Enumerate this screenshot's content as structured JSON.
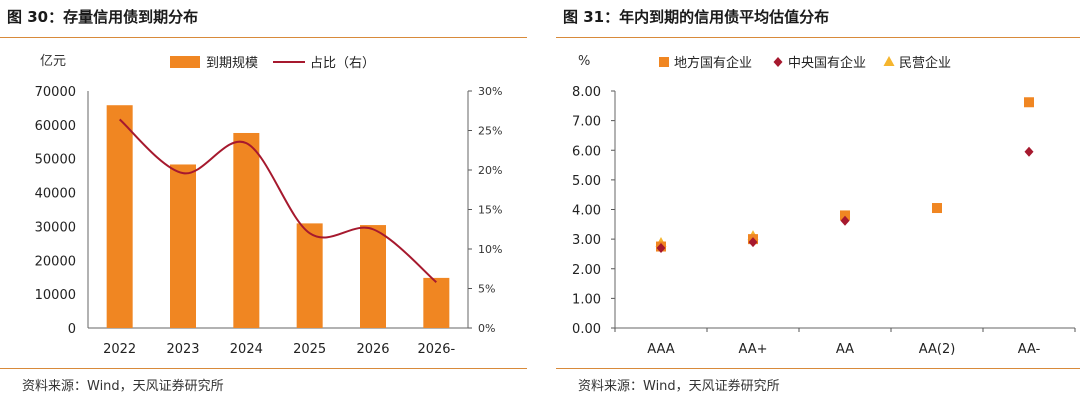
{
  "left": {
    "title": "图 30：存量信用债到期分布",
    "source": "资料来源：Wind，天风证券研究所",
    "chart_data": {
      "type": "bar",
      "categories": [
        "2022",
        "2023",
        "2024",
        "2025",
        "2026",
        "2026-"
      ],
      "y_unit_label": "亿元",
      "ylim": [
        0,
        70000
      ],
      "yticks": [
        0,
        10000,
        20000,
        30000,
        40000,
        50000,
        60000,
        70000
      ],
      "y2lim": [
        0,
        30
      ],
      "y2ticks": [
        "0%",
        "5%",
        "10%",
        "15%",
        "20%",
        "25%",
        "30%"
      ],
      "series": [
        {
          "name": "到期规模",
          "type": "bar",
          "axis": "left",
          "color": "#f08622",
          "values": [
            65800,
            48300,
            57600,
            30900,
            30400,
            14800
          ]
        },
        {
          "name": "占比（右）",
          "type": "line",
          "axis": "right",
          "color": "#a6192e",
          "values": [
            26.4,
            19.6,
            23.4,
            12.0,
            12.5,
            5.8
          ]
        }
      ],
      "legend_position": "top"
    }
  },
  "right": {
    "title": "图 31：年内到期的信用债平均估值分布",
    "source": "资料来源：Wind，天风证券研究所",
    "chart_data": {
      "type": "scatter",
      "categories": [
        "AAA",
        "AA+",
        "AA",
        "AA(2)",
        "AA-"
      ],
      "y_unit_label": "%",
      "ylim": [
        0,
        8
      ],
      "yticks": [
        "0.00",
        "1.00",
        "2.00",
        "3.00",
        "4.00",
        "5.00",
        "6.00",
        "7.00",
        "8.00"
      ],
      "series": [
        {
          "name": "地方国有企业",
          "marker": "square",
          "color": "#f08622",
          "values": [
            2.75,
            3.0,
            3.8,
            4.05,
            7.62
          ]
        },
        {
          "name": "中央国有企业",
          "marker": "diamond",
          "color": "#a6192e",
          "values": [
            2.7,
            2.9,
            3.62,
            null,
            5.95
          ]
        },
        {
          "name": "民营企业",
          "marker": "triangle",
          "color": "#f5b52e",
          "values": [
            2.87,
            3.1,
            null,
            null,
            null
          ]
        }
      ],
      "legend_position": "top"
    }
  }
}
